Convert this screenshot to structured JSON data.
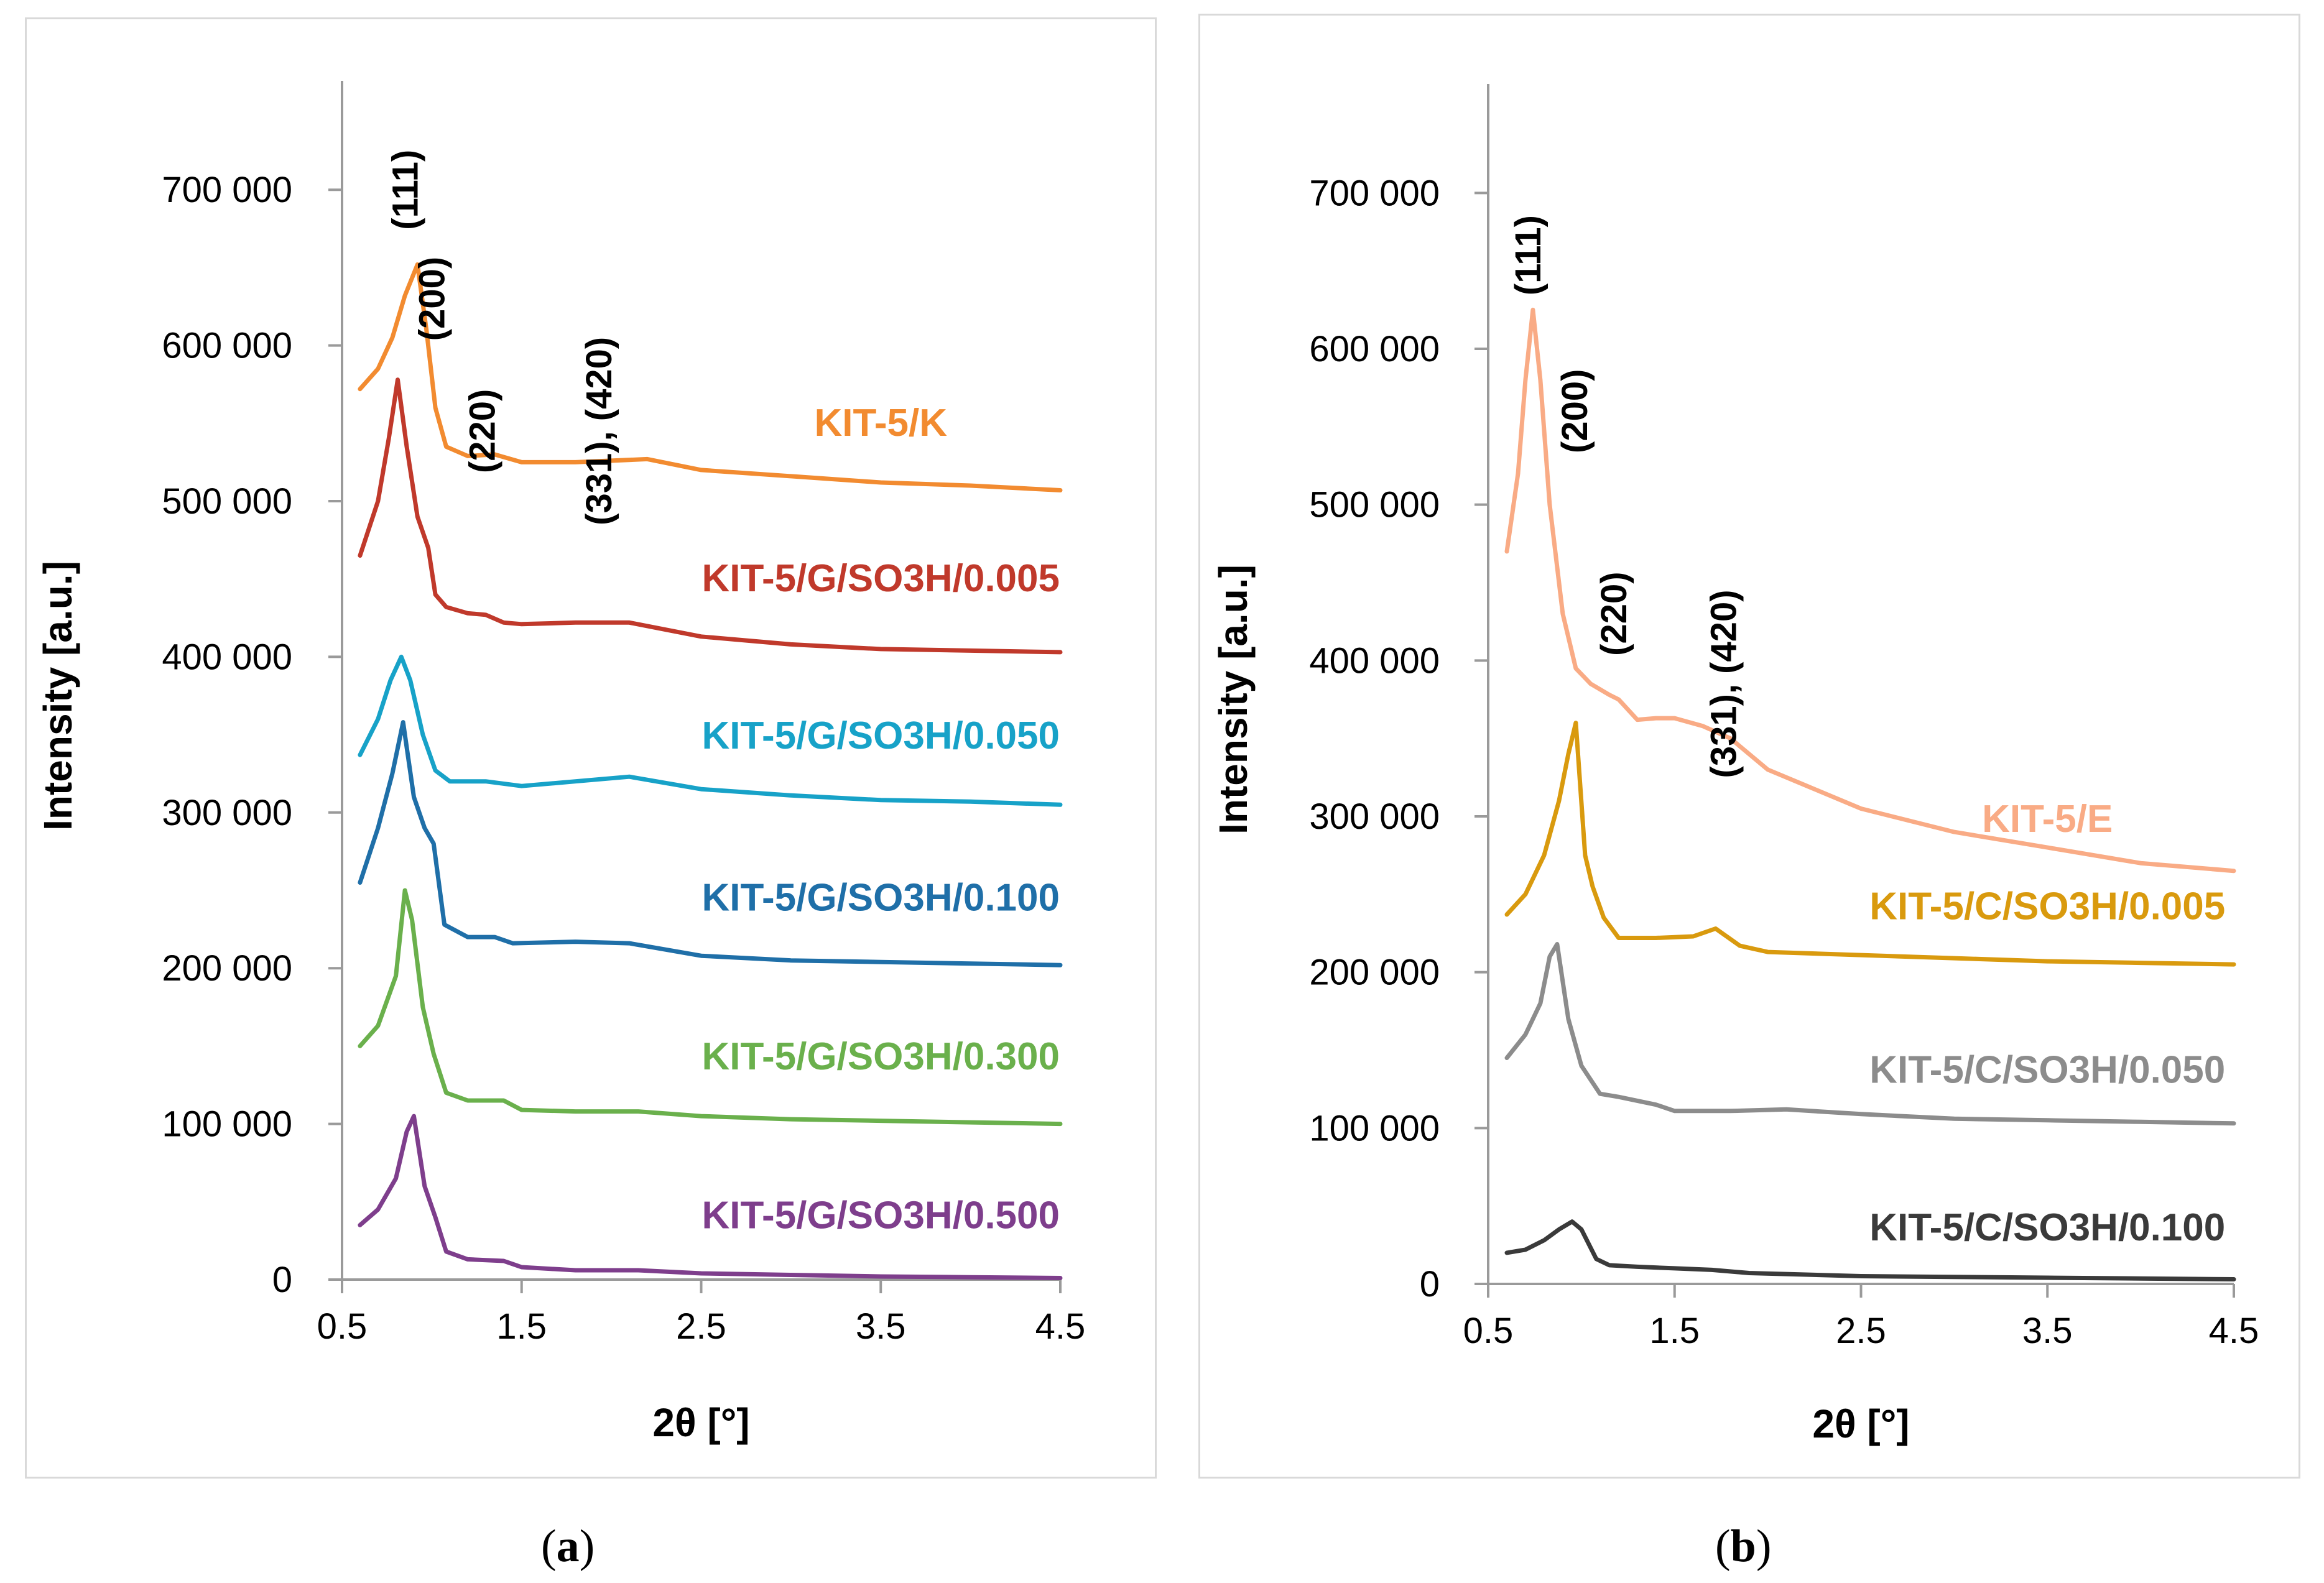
{
  "captions": {
    "a_open": "(",
    "a_letter": "a",
    "a_close": ")",
    "b_open": "(",
    "b_letter": "b",
    "b_close": ")"
  },
  "chart_data": [
    {
      "panel": "a",
      "type": "line",
      "title": "",
      "xlabel": "2θ [°]",
      "ylabel": "Intensity [a.u.]",
      "xlim": [
        0.5,
        4.5
      ],
      "ylim": [
        0,
        750000
      ],
      "xticks": [
        0.5,
        1.5,
        2.5,
        3.5,
        4.5
      ],
      "xtick_labels": [
        "0.5",
        "1.5",
        "2.5",
        "3.5",
        "4.5"
      ],
      "yticks": [
        0,
        100000,
        200000,
        300000,
        400000,
        500000,
        600000,
        700000
      ],
      "ytick_labels": [
        "0",
        "100 000",
        "200 000",
        "300 000",
        "400 000",
        "500 000",
        "600 000",
        "700 000"
      ],
      "grid": false,
      "peak_annotations": [
        {
          "text": "(111)",
          "x": 0.92,
          "y": 700000
        },
        {
          "text": "(200)",
          "x": 1.07,
          "y": 630000
        },
        {
          "text": "(220)",
          "x": 1.35,
          "y": 545000
        },
        {
          "text": "(331), (420)",
          "x": 2.0,
          "y": 545000
        }
      ],
      "series": [
        {
          "name": "KIT-5/K",
          "color": "#f28b30",
          "label_x": 3.5,
          "label_y": 542000,
          "x": [
            0.6,
            0.7,
            0.78,
            0.85,
            0.92,
            0.97,
            1.02,
            1.08,
            1.2,
            1.35,
            1.5,
            1.8,
            2.2,
            2.5,
            3.0,
            3.5,
            4.0,
            4.5
          ],
          "y": [
            572000,
            585000,
            605000,
            632000,
            652000,
            610000,
            560000,
            535000,
            529000,
            530000,
            525000,
            525000,
            527000,
            520000,
            516000,
            512000,
            510000,
            507000
          ]
        },
        {
          "name": "KIT-5/G/SO3H/0.005",
          "color": "#c0392b",
          "label_x": 3.5,
          "label_y": 442000,
          "x": [
            0.6,
            0.7,
            0.76,
            0.81,
            0.86,
            0.92,
            0.98,
            1.02,
            1.08,
            1.2,
            1.3,
            1.4,
            1.5,
            1.8,
            2.1,
            2.5,
            3.0,
            3.5,
            4.0,
            4.5
          ],
          "y": [
            465000,
            500000,
            540000,
            578000,
            535000,
            490000,
            470000,
            440000,
            432000,
            428000,
            427000,
            422000,
            421000,
            422000,
            422000,
            413000,
            408000,
            405000,
            404000,
            403000
          ]
        },
        {
          "name": "KIT-5/G/SO3H/0.050",
          "color": "#17a2c8",
          "label_x": 3.5,
          "label_y": 341000,
          "x": [
            0.6,
            0.7,
            0.77,
            0.83,
            0.88,
            0.95,
            1.02,
            1.1,
            1.3,
            1.5,
            1.8,
            2.1,
            2.5,
            3.0,
            3.5,
            4.0,
            4.5
          ],
          "y": [
            337000,
            360000,
            385000,
            400000,
            385000,
            350000,
            327000,
            320000,
            320000,
            317000,
            320000,
            323000,
            315000,
            311000,
            308000,
            307000,
            305000
          ]
        },
        {
          "name": "KIT-5/G/SO3H/0.100",
          "color": "#1f6fa8",
          "label_x": 3.5,
          "label_y": 237000,
          "x": [
            0.6,
            0.7,
            0.78,
            0.84,
            0.9,
            0.96,
            1.01,
            1.07,
            1.2,
            1.35,
            1.45,
            1.8,
            2.1,
            2.5,
            3.0,
            3.5,
            4.0,
            4.5
          ],
          "y": [
            255000,
            290000,
            325000,
            358000,
            310000,
            290000,
            280000,
            228000,
            220000,
            220000,
            216000,
            217000,
            216000,
            208000,
            205000,
            204000,
            203000,
            202000
          ]
        },
        {
          "name": "KIT-5/G/SO3H/0.300",
          "color": "#6ab04c",
          "label_x": 3.5,
          "label_y": 135000,
          "x": [
            0.6,
            0.7,
            0.8,
            0.85,
            0.89,
            0.95,
            1.01,
            1.08,
            1.2,
            1.4,
            1.5,
            1.8,
            2.15,
            2.5,
            3.0,
            3.5,
            4.0,
            4.5
          ],
          "y": [
            150000,
            163000,
            195000,
            250000,
            231000,
            175000,
            145000,
            120000,
            115000,
            115000,
            109000,
            108000,
            108000,
            105000,
            103000,
            102000,
            101000,
            100000
          ]
        },
        {
          "name": "KIT-5/G/SO3H/0.500",
          "color": "#7e3e8c",
          "label_x": 3.5,
          "label_y": 33000,
          "x": [
            0.6,
            0.7,
            0.8,
            0.86,
            0.9,
            0.96,
            1.02,
            1.08,
            1.2,
            1.4,
            1.5,
            1.8,
            2.15,
            2.5,
            3.0,
            3.5,
            4.0,
            4.5
          ],
          "y": [
            35000,
            45000,
            65000,
            95000,
            105000,
            60000,
            40000,
            18000,
            13000,
            12000,
            8000,
            6000,
            6000,
            4000,
            3000,
            2000,
            1500,
            1000
          ]
        }
      ]
    },
    {
      "panel": "b",
      "type": "line",
      "title": "",
      "xlabel": "2θ [°]",
      "ylabel": "Intensity [a.u.]",
      "xlim": [
        0.5,
        4.5
      ],
      "ylim": [
        0,
        750000
      ],
      "xticks": [
        0.5,
        1.5,
        2.5,
        3.5,
        4.5
      ],
      "xtick_labels": [
        "0.5",
        "1.5",
        "2.5",
        "3.5",
        "4.5"
      ],
      "yticks": [
        0,
        100000,
        200000,
        300000,
        400000,
        500000,
        600000,
        700000
      ],
      "ytick_labels": [
        "0",
        "100 000",
        "200 000",
        "300 000",
        "400 000",
        "500 000",
        "600 000",
        "700 000"
      ],
      "grid": false,
      "peak_annotations": [
        {
          "text": "(111)",
          "x": 0.78,
          "y": 660000
        },
        {
          "text": "(200)",
          "x": 1.03,
          "y": 560000
        },
        {
          "text": "(220)",
          "x": 1.24,
          "y": 430000
        },
        {
          "text": "(331), (420)",
          "x": 1.83,
          "y": 385000
        }
      ],
      "series": [
        {
          "name": "KIT-5/E",
          "color": "#f9ab85",
          "label_x": 3.5,
          "label_y": 290000,
          "x": [
            0.6,
            0.66,
            0.7,
            0.74,
            0.78,
            0.83,
            0.9,
            0.97,
            1.05,
            1.15,
            1.2,
            1.3,
            1.4,
            1.5,
            1.65,
            1.8,
            2.0,
            2.2,
            2.5,
            3.0,
            3.5,
            4.0,
            4.5
          ],
          "y": [
            470000,
            520000,
            580000,
            625000,
            580000,
            500000,
            430000,
            395000,
            385000,
            378000,
            375000,
            362000,
            363000,
            363000,
            358000,
            350000,
            330000,
            320000,
            305000,
            290000,
            280000,
            270000,
            265000
          ]
        },
        {
          "name": "KIT-5/C/SO3H/0.005",
          "color": "#d99a0e",
          "label_x": 3.5,
          "label_y": 234000,
          "x": [
            0.6,
            0.7,
            0.8,
            0.88,
            0.93,
            0.97,
            1.02,
            1.06,
            1.12,
            1.2,
            1.4,
            1.6,
            1.72,
            1.85,
            2.0,
            2.5,
            3.0,
            3.5,
            4.0,
            4.5
          ],
          "y": [
            237000,
            250000,
            275000,
            310000,
            340000,
            360000,
            275000,
            255000,
            235000,
            222000,
            222000,
            223000,
            228000,
            217000,
            213000,
            211000,
            209000,
            207000,
            206000,
            205000
          ]
        },
        {
          "name": "KIT-5/C/SO3H/0.050",
          "color": "#8c8c8c",
          "label_x": 3.5,
          "label_y": 129000,
          "x": [
            0.6,
            0.7,
            0.78,
            0.83,
            0.87,
            0.93,
            1.0,
            1.1,
            1.2,
            1.4,
            1.5,
            1.8,
            2.1,
            2.5,
            3.0,
            3.5,
            4.0,
            4.5
          ],
          "y": [
            145000,
            160000,
            180000,
            210000,
            218000,
            170000,
            140000,
            122000,
            120000,
            115000,
            111000,
            111000,
            112000,
            109000,
            106000,
            105000,
            104000,
            103000
          ]
        },
        {
          "name": "KIT-5/C/SO3H/0.100",
          "color": "#3a3a3a",
          "label_x": 3.5,
          "label_y": 28000,
          "x": [
            0.6,
            0.7,
            0.8,
            0.88,
            0.95,
            1.0,
            1.08,
            1.15,
            1.3,
            1.5,
            1.7,
            1.9,
            2.5,
            3.0,
            3.5,
            4.0,
            4.5
          ],
          "y": [
            20000,
            22000,
            28000,
            35000,
            40000,
            35000,
            16000,
            12000,
            11000,
            10000,
            9000,
            7000,
            5000,
            4500,
            4000,
            3500,
            3000
          ]
        }
      ]
    }
  ]
}
